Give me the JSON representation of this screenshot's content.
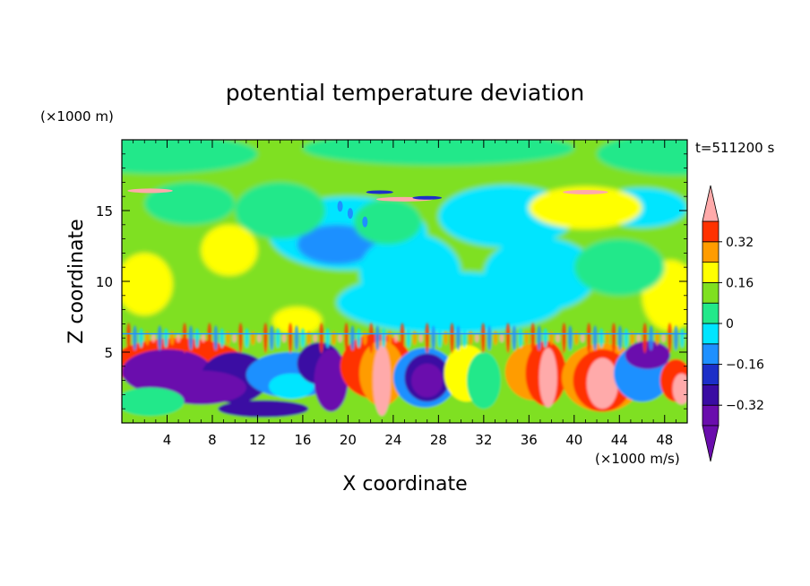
{
  "chart_data": {
    "type": "heatmap",
    "title": "potential temperature deviation",
    "xlabel": "X coordinate",
    "ylabel": "Z coordinate",
    "x_unit": "(×1000 m/s)",
    "y_unit": "(×1000 m)",
    "time_label": "t=511200 s",
    "xlim": [
      0,
      50
    ],
    "ylim": [
      0,
      20
    ],
    "xticks": [
      "4",
      "8",
      "12",
      "16",
      "20",
      "24",
      "28",
      "32",
      "36",
      "40",
      "44",
      "48"
    ],
    "yticks": [
      "5",
      "10",
      "15"
    ],
    "colorbar": {
      "levels": [
        -0.4,
        -0.32,
        -0.24,
        -0.16,
        -0.08,
        0,
        0.08,
        0.16,
        0.24,
        0.32,
        0.4
      ],
      "labels": [
        "0.32",
        "0.16",
        "0",
        "−0.16",
        "−0.32"
      ],
      "label_values": [
        0.32,
        0.16,
        0,
        -0.16,
        -0.32
      ],
      "colors": [
        "#6a0dad",
        "#3a0ca3",
        "#1c2fc8",
        "#1e90ff",
        "#00e5ff",
        "#22e88a",
        "#7fe020",
        "#ffff00",
        "#ff9c00",
        "#ff3200",
        "#ffaaaa"
      ],
      "extend": "both"
    }
  }
}
